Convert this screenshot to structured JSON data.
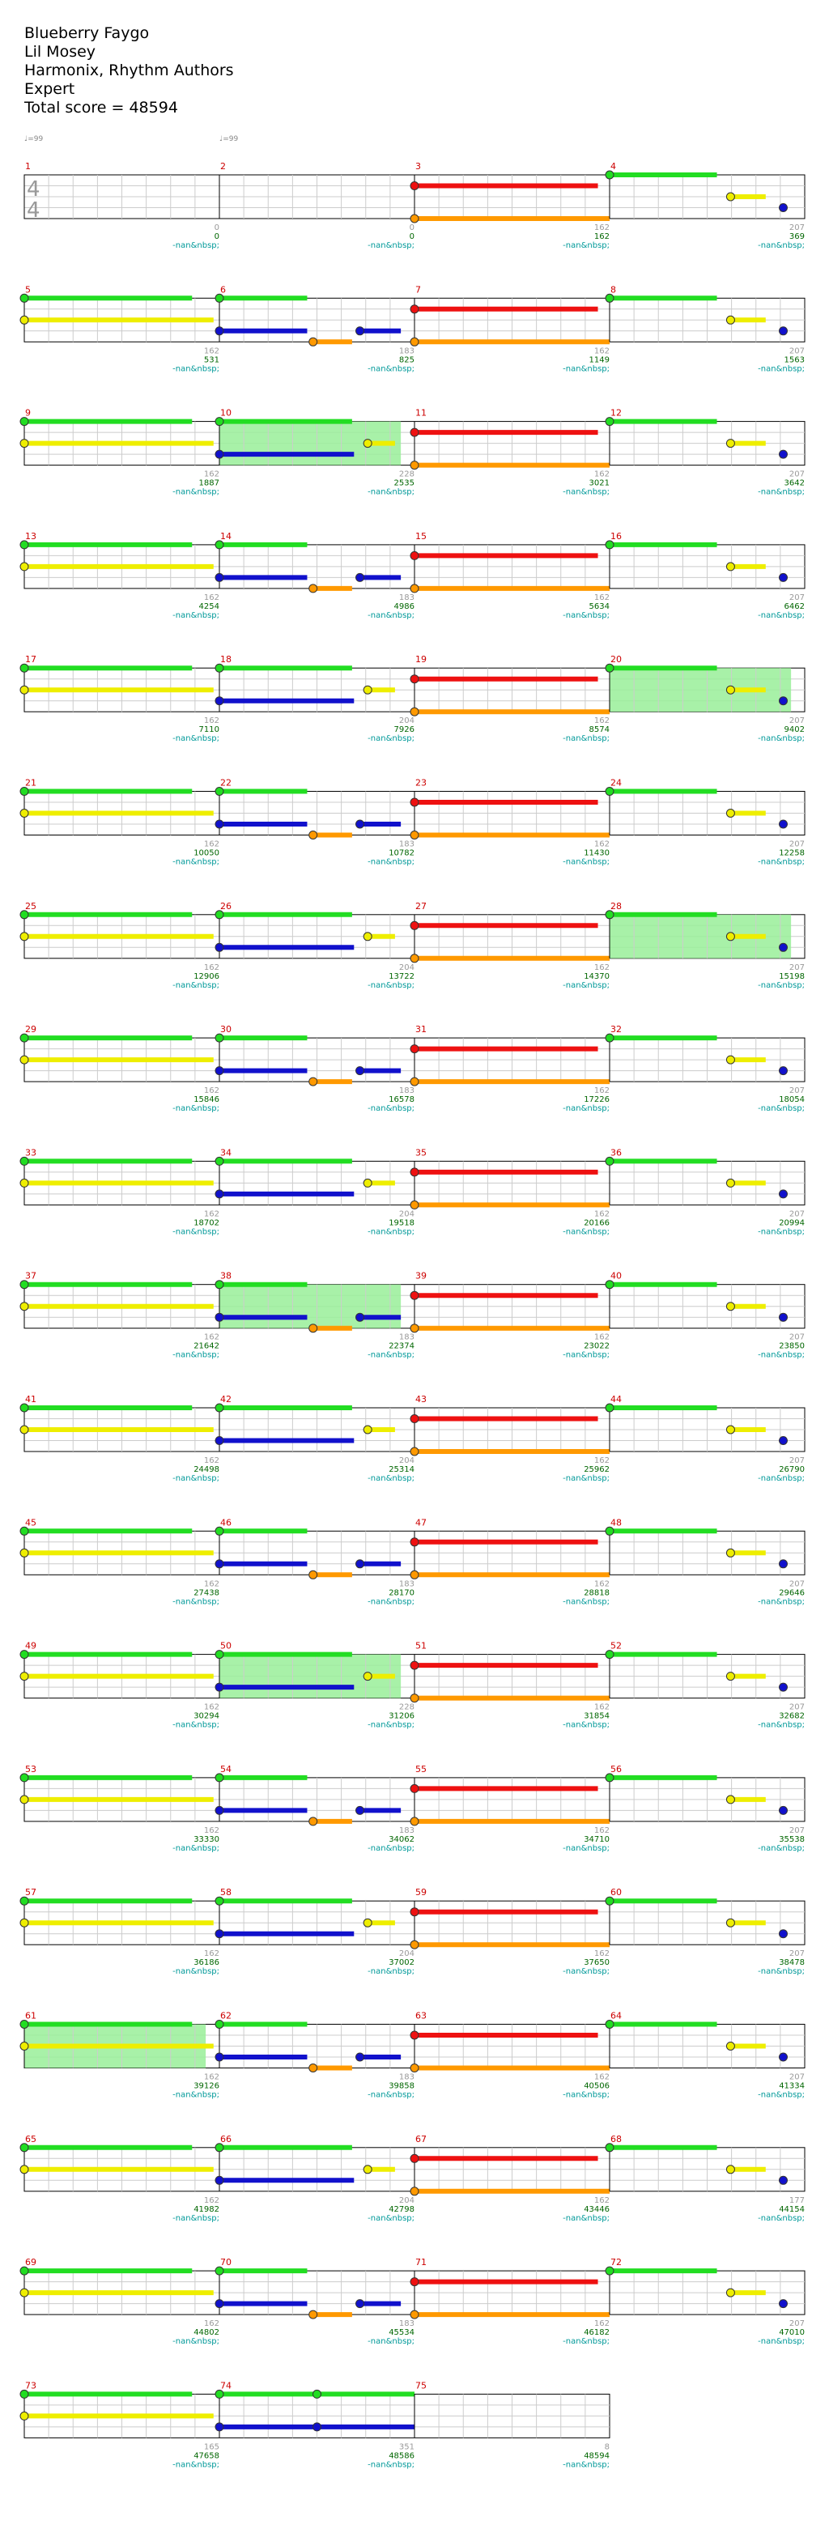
{
  "song": {
    "title": "Blueberry Faygo",
    "artist": "Lil Mosey",
    "charter": "Harmonix, Rhythm Authors",
    "difficulty": "Expert",
    "total_score_label": "Total score = 48594"
  },
  "tempo_labels": [
    "♩=99",
    "♩=99"
  ],
  "time_signature": [
    "4",
    "4"
  ],
  "label_placeholder": "-nan&nbsp;",
  "colors": {
    "green": "#22dd22",
    "red": "#ee1111",
    "yellow": "#eeee00",
    "blue": "#1111cc",
    "orange": "#ff9900",
    "star_power": "#99ee99",
    "measure_number": "#cc0000",
    "score": "#006600",
    "label": "#009999",
    "grid": "#cccccc"
  },
  "chart_data": {
    "type": "table",
    "measures_per_row": 4,
    "cumulative_scores": [
      [
        "0",
        "0",
        "162",
        "369"
      ],
      [
        "531",
        "825",
        "1149",
        "1563"
      ],
      [
        "1887",
        "2535",
        "3021",
        "3642"
      ],
      [
        "4254",
        "4986",
        "5634",
        "6462"
      ],
      [
        "7110",
        "7926",
        "8574",
        "9402"
      ],
      [
        "10050",
        "10782",
        "11430",
        "12258"
      ],
      [
        "12906",
        "13722",
        "14370",
        "15198"
      ],
      [
        "15846",
        "16578",
        "17226",
        "18054"
      ],
      [
        "18702",
        "19518",
        "20166",
        "20994"
      ],
      [
        "21642",
        "22374",
        "23022",
        "23850"
      ],
      [
        "24498",
        "25314",
        "25962",
        "26790"
      ],
      [
        "27438",
        "28170",
        "28818",
        "29646"
      ],
      [
        "30294",
        "31206",
        "31854",
        "32682"
      ],
      [
        "33330",
        "34062",
        "34710",
        "35538"
      ],
      [
        "36186",
        "37002",
        "37650",
        "38478"
      ],
      [
        "39126",
        "39858",
        "40506",
        "41334"
      ],
      [
        "41982",
        "42798",
        "43446",
        "44154"
      ],
      [
        "44802",
        "45534",
        "46182",
        "47010"
      ],
      [
        "47658",
        "48586",
        "48594"
      ]
    ],
    "measure_scores": [
      [
        "0",
        "0",
        "162",
        "207"
      ],
      [
        "162",
        "183",
        "162",
        "207"
      ],
      [
        "162",
        "228",
        "162",
        "207"
      ],
      [
        "162",
        "183",
        "162",
        "207"
      ],
      [
        "162",
        "204",
        "162",
        "207"
      ],
      [
        "162",
        "183",
        "162",
        "207"
      ],
      [
        "162",
        "204",
        "162",
        "207"
      ],
      [
        "162",
        "183",
        "162",
        "207"
      ],
      [
        "162",
        "204",
        "162",
        "207"
      ],
      [
        "162",
        "183",
        "162",
        "207"
      ],
      [
        "162",
        "204",
        "162",
        "207"
      ],
      [
        "162",
        "183",
        "162",
        "207"
      ],
      [
        "162",
        "228",
        "162",
        "207"
      ],
      [
        "162",
        "183",
        "162",
        "207"
      ],
      [
        "162",
        "204",
        "162",
        "207"
      ],
      [
        "162",
        "183",
        "162",
        "207"
      ],
      [
        "162",
        "204",
        "162",
        "177"
      ],
      [
        "162",
        "183",
        "162",
        "207"
      ],
      [
        "165",
        "351",
        "8"
      ]
    ],
    "star_power_measures": [
      10,
      20,
      28,
      38,
      50,
      61
    ]
  }
}
